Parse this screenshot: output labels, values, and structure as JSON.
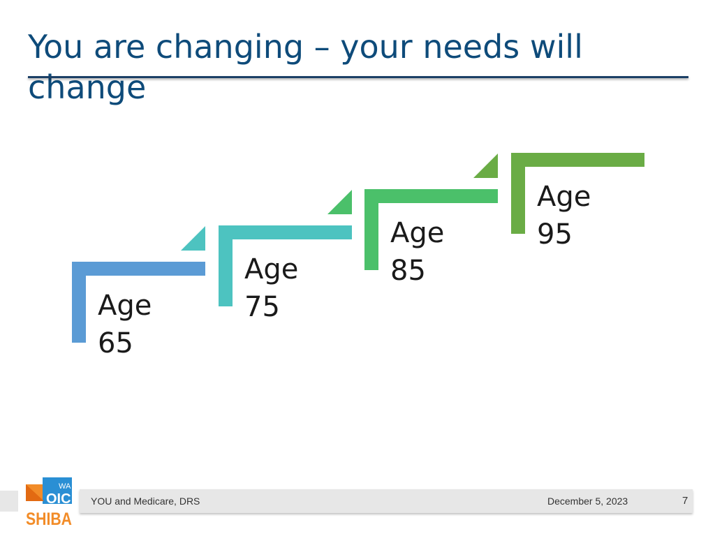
{
  "slide": {
    "title": "You are changing – your needs will change"
  },
  "steps": [
    {
      "label": "Age\n65",
      "color": "#5b9bd5"
    },
    {
      "label": "Age\n75",
      "color": "#4dc3c0"
    },
    {
      "label": "Age\n85",
      "color": "#4bc06a"
    },
    {
      "label": "Age\n95",
      "color": "#6aac45"
    }
  ],
  "footer": {
    "presentation": "YOU and Medicare, DRS",
    "date": "December 5, 2023",
    "page_number": "7"
  },
  "logo": {
    "name": "wa-oic-shiba-logo",
    "text_top": "WA",
    "text_mid": "OIC",
    "text_bottom": "SHIBA",
    "colors": {
      "blue": "#2a8fd4",
      "orange": "#f28c28"
    }
  }
}
